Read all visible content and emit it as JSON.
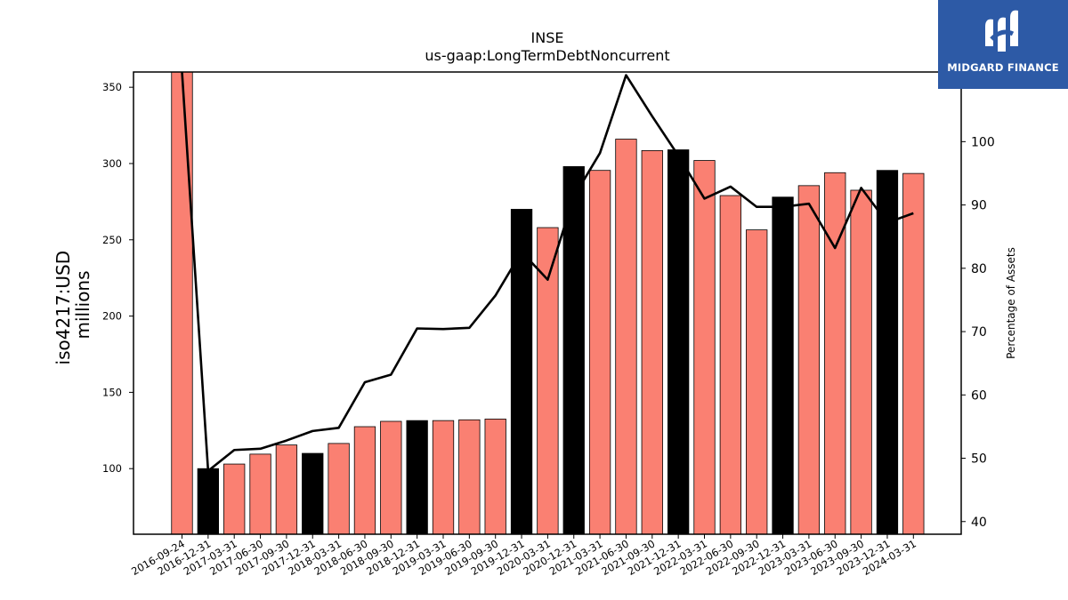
{
  "brand": {
    "name": "MIDGARD FINANCE",
    "logo_icon": "midgard-logo-icon",
    "background": "#2d5aa6"
  },
  "chart_data": {
    "type": "bar",
    "title": "INSE",
    "subtitle": "us-gaap:LongTermDebtNoncurrent",
    "ylabel": "iso4217:USD\nmillions",
    "y2label": "Percentage of Assets",
    "ylim": [
      57,
      360
    ],
    "y2lim": [
      38,
      111
    ],
    "yticks": [
      100,
      150,
      200,
      250,
      300,
      350
    ],
    "y2ticks": [
      40,
      50,
      60,
      70,
      80,
      90,
      100
    ],
    "categories": [
      "2016-09-24",
      "2016-12-31",
      "2017-03-31",
      "2017-06-30",
      "2017-09-30",
      "2017-12-31",
      "2018-03-31",
      "2018-06-30",
      "2018-09-30",
      "2018-12-31",
      "2019-03-31",
      "2019-06-30",
      "2019-09-30",
      "2019-12-31",
      "2020-03-31",
      "2020-12-31",
      "2021-03-31",
      "2021-06-30",
      "2021-09-30",
      "2021-12-31",
      "2022-03-31",
      "2022-06-30",
      "2022-09-30",
      "2022-12-31",
      "2023-03-31",
      "2023-06-30",
      "2023-09-30",
      "2023-12-31",
      "2024-03-31"
    ],
    "series": [
      {
        "type": "bar",
        "values": [
          360,
          100,
          103,
          109.5,
          115.5,
          110,
          116.5,
          127.5,
          131,
          131.5,
          131.5,
          132,
          132.5,
          270,
          258,
          298,
          295.5,
          316,
          308.5,
          309,
          302,
          279,
          256.5,
          278,
          285.5,
          294,
          282.5,
          295.5,
          293.5
        ],
        "colors": [
          "#fa8072",
          "#000000",
          "#fa8072",
          "#fa8072",
          "#fa8072",
          "#000000",
          "#fa8072",
          "#fa8072",
          "#fa8072",
          "#000000",
          "#fa8072",
          "#fa8072",
          "#fa8072",
          "#000000",
          "#fa8072",
          "#000000",
          "#fa8072",
          "#fa8072",
          "#fa8072",
          "#000000",
          "#fa8072",
          "#fa8072",
          "#fa8072",
          "#000000",
          "#fa8072",
          "#fa8072",
          "#fa8072",
          "#000000",
          "#fa8072"
        ]
      },
      {
        "type": "line",
        "axis": "right",
        "color": "#000000",
        "values": [
          null,
          48,
          51.3,
          51.5,
          52.8,
          54.3,
          54.8,
          62,
          63.2,
          70.5,
          70.4,
          70.6,
          75.7,
          82.6,
          78.2,
          91.3,
          98.2,
          110.5,
          104,
          97.8,
          91,
          92.9,
          89.7,
          89.7,
          90.2,
          83.2,
          92.7,
          87.2,
          88.7
        ]
      }
    ],
    "first_line_segment_start": 111,
    "grid": false,
    "legend": "none"
  }
}
